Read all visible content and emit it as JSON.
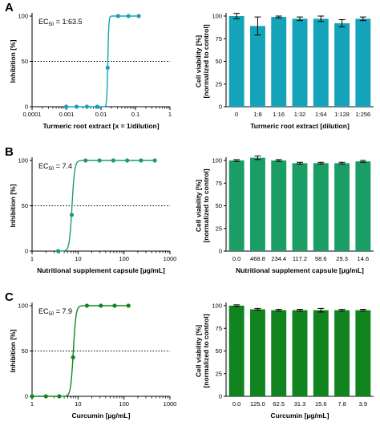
{
  "panels": [
    {
      "label": "A",
      "ec50_value": "= 1:63.5",
      "ec50_sub": "50",
      "ec50_prefix": "EC"
    },
    {
      "label": "B",
      "ec50_value": "= 7.4",
      "ec50_sub": "50",
      "ec50_prefix": "EC"
    },
    {
      "label": "C",
      "ec50_value": "= 7.9",
      "ec50_sub": "50",
      "ec50_prefix": "EC"
    }
  ],
  "chart_data": [
    {
      "type": "scatter",
      "panel": "A",
      "xlabel": "Turmeric root extract [x = 1/dilution]",
      "ylabel": "Inhibition [%]",
      "xscale": "log",
      "xlim": [
        0.0001,
        1
      ],
      "ylim": [
        0,
        100
      ],
      "xticks": [
        0.0001,
        0.001,
        0.01,
        0.1,
        1
      ],
      "xtick_labels": [
        "0.0001",
        "0.001",
        "0.01",
        "0.1",
        "1"
      ],
      "yticks": [
        0,
        50,
        100
      ],
      "x": [
        0.00098,
        0.00195,
        0.0039,
        0.0078,
        0.0156,
        0.0313,
        0.0625,
        0.125
      ],
      "y": [
        0,
        0,
        0,
        0,
        43,
        100,
        100,
        100
      ],
      "fit": {
        "ec50": 0.01575,
        "hill": 30
      },
      "reference_line": 50,
      "color": "#14a3b8"
    },
    {
      "type": "bar",
      "panel": "A",
      "xlabel": "Turmeric root extract [dilution]",
      "ylabel": "Cell viability [%]\n[normalized to control]",
      "categories": [
        "0",
        "1:8",
        "1:16",
        "1:32",
        "1:64",
        "1:128",
        "1:256"
      ],
      "values": [
        100,
        89,
        99,
        97,
        97,
        92,
        97
      ],
      "errors": [
        3,
        10,
        1,
        2,
        3,
        4,
        2
      ],
      "ylim": [
        0,
        100
      ],
      "yticks": [
        0,
        25,
        50,
        75,
        100
      ],
      "color": "#14a3b8"
    },
    {
      "type": "scatter",
      "panel": "B",
      "xlabel": "Nutritional supplement capsule [µg/mL]",
      "ylabel": "Inhibition [%]",
      "xscale": "log",
      "xlim": [
        1,
        1000
      ],
      "ylim": [
        0,
        100
      ],
      "xticks": [
        1,
        10,
        100,
        1000
      ],
      "xtick_labels": [
        "1",
        "10",
        "100",
        "1000"
      ],
      "yticks": [
        0,
        50,
        100
      ],
      "x": [
        3.7,
        7.3,
        14.6,
        29.3,
        58.6,
        117.2,
        234.4,
        468.8
      ],
      "y": [
        0,
        40,
        100,
        100,
        100,
        100,
        100,
        100
      ],
      "fit": {
        "ec50": 7.4,
        "hill": 15
      },
      "reference_line": 50,
      "color": "#1a9e66"
    },
    {
      "type": "bar",
      "panel": "B",
      "xlabel": "Nutritional supplement capsule [µg/mL]",
      "ylabel": "Cell viability [%]\n[normalized to control]",
      "categories": [
        "0.0",
        "468.8",
        "234.4",
        "117.2",
        "58.6",
        "29.3",
        "14.6"
      ],
      "values": [
        100,
        103,
        100,
        97,
        97,
        97,
        99
      ],
      "errors": [
        1,
        2,
        1,
        1,
        1,
        1,
        1
      ],
      "ylim": [
        0,
        100
      ],
      "yticks": [
        0,
        25,
        50,
        75,
        100
      ],
      "color": "#1a9e66"
    },
    {
      "type": "scatter",
      "panel": "C",
      "xlabel": "Curcumin [µg/mL]",
      "ylabel": "Inhibition [%]",
      "xscale": "log",
      "xlim": [
        1,
        1000
      ],
      "ylim": [
        0,
        100
      ],
      "xticks": [
        1,
        10,
        100,
        1000
      ],
      "xtick_labels": [
        "1",
        "10",
        "100",
        "1000"
      ],
      "yticks": [
        0,
        50,
        100
      ],
      "x": [
        1,
        2,
        3.9,
        7.8,
        15.6,
        31.3,
        62.5,
        125
      ],
      "y": [
        0,
        0,
        0,
        43,
        100,
        100,
        100,
        100
      ],
      "fit": {
        "ec50": 7.9,
        "hill": 15
      },
      "reference_line": 50,
      "color": "#12841f"
    },
    {
      "type": "bar",
      "panel": "C",
      "xlabel": "Curcumin [µg/mL]",
      "ylabel": "Cell viability [%]\n[normalized to control]",
      "categories": [
        "0.0",
        "125.0",
        "62.5",
        "31.3",
        "15.6",
        "7.8",
        "3.9"
      ],
      "values": [
        100,
        96,
        95,
        95,
        95,
        95,
        95
      ],
      "errors": [
        1,
        1,
        1,
        1,
        2,
        1,
        1
      ],
      "ylim": [
        0,
        100
      ],
      "yticks": [
        0,
        25,
        50,
        75,
        100
      ],
      "color": "#12841f"
    }
  ]
}
